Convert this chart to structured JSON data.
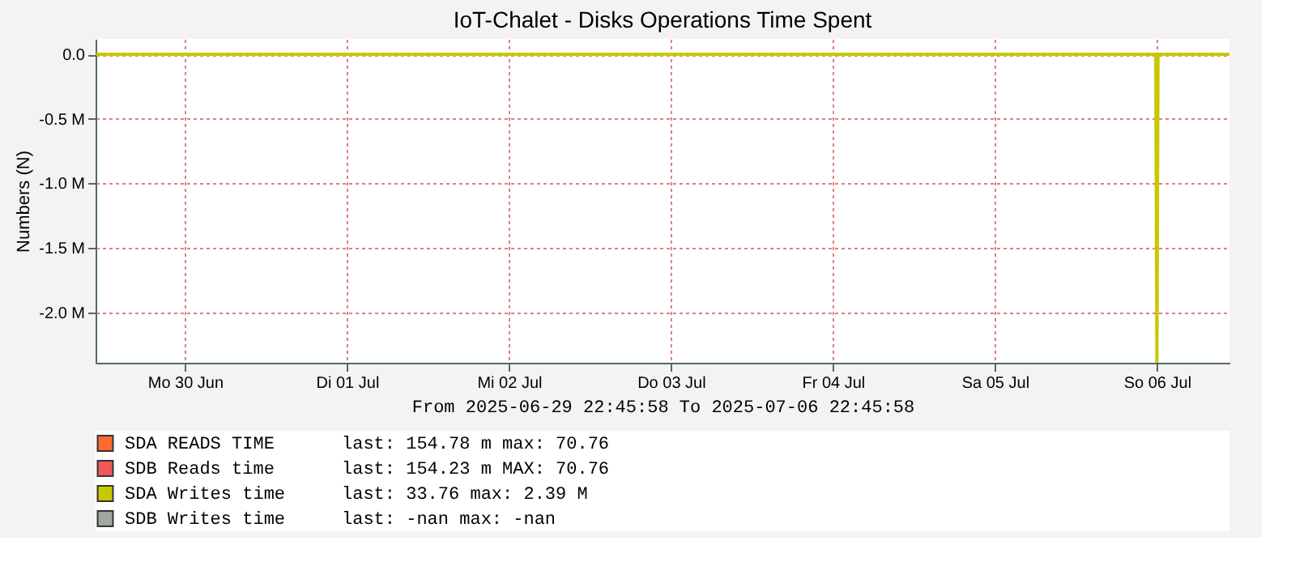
{
  "chart_data": {
    "type": "line",
    "title": "IoT-Chalet -  Disks Operations Time Spent",
    "xlabel": "From 2025-06-29 22:45:58 To 2025-07-06 22:45:58",
    "ylabel": "Numbers (N)",
    "x": [
      "2025-06-29T22:50",
      "2025-07-06T11:50",
      "2025-07-06T12:00",
      "2025-07-06T12:10",
      "2025-07-06T22:45"
    ],
    "series": [
      {
        "name": "SDA READS TIME",
        "color": "#ff6a30",
        "values": [
          null,
          null,
          null,
          null,
          null
        ]
      },
      {
        "name": "SDB Reads time",
        "color": "#f25858",
        "values": [
          null,
          null,
          null,
          null,
          null
        ]
      },
      {
        "name": "SDA Writes time",
        "color": "#c8c800",
        "values": [
          0,
          0,
          -2.39,
          0,
          0
        ]
      },
      {
        "name": "SDB Writes time",
        "color": "#a0a8a0",
        "values": [
          null,
          null,
          null,
          null,
          null
        ]
      }
    ],
    "annotations": [
      "last:  154.78 m  max:   70.76",
      "last:  154.23 m  MAX:   70.76",
      "last:   33.76    max:    2.39 M",
      "last:    -nan    max:    -nan"
    ],
    "xlim": [
      "2025-06-29T22:45",
      "2025-07-06T22:45"
    ],
    "xticks": [
      {
        "value": "2025-06-30T12:00",
        "label": "Mo 30 Jun"
      },
      {
        "value": "2025-07-01T12:00",
        "label": "Di 01 Jul"
      },
      {
        "value": "2025-07-02T12:00",
        "label": "Mi 02 Jul"
      },
      {
        "value": "2025-07-03T12:00",
        "label": "Do 03 Jul"
      },
      {
        "value": "2025-07-04T12:00",
        "label": "Fr 04 Jul"
      },
      {
        "value": "2025-07-05T12:00",
        "label": "Sa 05 Jul"
      },
      {
        "value": "2025-07-06T12:00",
        "label": "So 06 Jul"
      }
    ],
    "ylim": [
      -2.39,
      0.12
    ],
    "yticks": [
      {
        "value": 0,
        "label": "0.0"
      },
      {
        "value": -0.5,
        "label": "-0.5 M"
      },
      {
        "value": -1.0,
        "label": "-1.0 M"
      },
      {
        "value": -1.5,
        "label": "-1.5 M"
      },
      {
        "value": -2.0,
        "label": "-2.0 M"
      }
    ],
    "grid": true,
    "legend": "bottom",
    "marker": "none",
    "line_style": "solid"
  }
}
